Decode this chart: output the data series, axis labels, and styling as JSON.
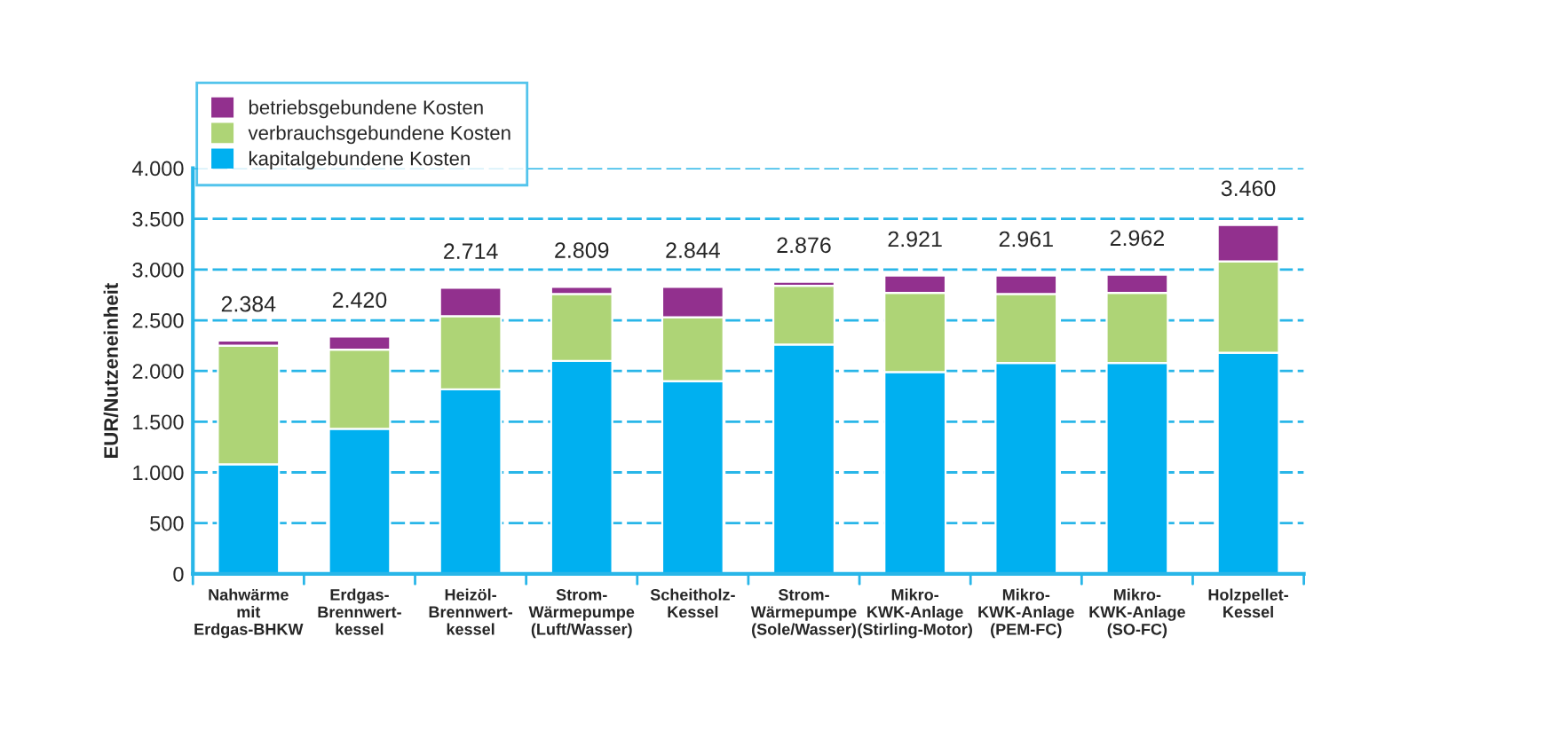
{
  "chart_data": {
    "type": "bar",
    "stacked": true,
    "ylabel": "EUR/Nutzeneinheit",
    "categories": [
      "Nahwärme\nmit\nErdgas-BHKW",
      "Erdgas-\nBrennwert-\nkessel",
      "Heizöl-\nBrennwert-\nkessel",
      "Strom-\nWärmepumpe\n(Luft/Wasser)",
      "Scheitholz-\nKessel",
      "Strom-\nWärmepumpe\n(Sole/Wasser)",
      "Mikro-\nKWK-Anlage\n(Stirling-Motor)",
      "Mikro-\nKWK-Anlage\n(PEM-FC)",
      "Mikro-\nKWK-Anlage\n(SO-FC)",
      "Holzpellet-\nKessel"
    ],
    "series": [
      {
        "name": "kapitalgebundene Kosten",
        "color": "#00b0f0",
        "values": [
          1080,
          1430,
          1820,
          2100,
          1900,
          2260,
          1990,
          2080,
          2080,
          2180
        ]
      },
      {
        "name": "verbrauchsgebundene Kosten",
        "color": "#aed476",
        "values": [
          1170,
          780,
          720,
          660,
          630,
          580,
          780,
          680,
          690,
          900
        ]
      },
      {
        "name": "betriebsgebundene Kosten",
        "color": "#92308e",
        "values": [
          50,
          130,
          280,
          70,
          300,
          40,
          170,
          180,
          180,
          360
        ]
      }
    ],
    "annotations": [
      "2.384",
      "2.420",
      "2.714",
      "2.809",
      "2.844",
      "2.876",
      "2.921",
      "2.961",
      "2.962",
      "3.460"
    ],
    "ylim": [
      0,
      4000
    ],
    "yticks": [
      {
        "value": 0,
        "label": "0"
      },
      {
        "value": 500,
        "label": "500"
      },
      {
        "value": 1000,
        "label": "1.000"
      },
      {
        "value": 1500,
        "label": "1.500"
      },
      {
        "value": 2000,
        "label": "2.000"
      },
      {
        "value": 2500,
        "label": "2.500"
      },
      {
        "value": 3000,
        "label": "3.000"
      },
      {
        "value": 3500,
        "label": "3.500"
      },
      {
        "value": 4000,
        "label": "4.000"
      }
    ],
    "grid": "y",
    "legend": "top left"
  }
}
